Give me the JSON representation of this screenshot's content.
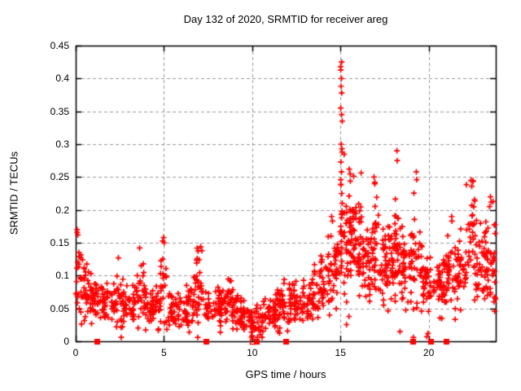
{
  "chart_data": {
    "type": "scatter",
    "title": "Day 132 of 2020, SRMTID for receiver areg",
    "xlabel": "GPS time / hours",
    "ylabel": "SRMTID / TECUs",
    "xlim": [
      0,
      23.8
    ],
    "ylim": [
      0,
      0.45
    ],
    "x_ticks": [
      0,
      5,
      10,
      15,
      20
    ],
    "x_tick_labels": [
      "0",
      "5",
      "10",
      "15",
      "20"
    ],
    "y_ticks": [
      0,
      0.05,
      0.1,
      0.15,
      0.2,
      0.25,
      0.3,
      0.35,
      0.4,
      0.45
    ],
    "y_tick_labels": [
      "0",
      "0.05",
      "0.1",
      "0.15",
      "0.2",
      "0.25",
      "0.3",
      "0.35",
      "0.4",
      "0.45"
    ],
    "grid": {
      "style": "dashed",
      "color": "#9a9a9a",
      "x_lines": [
        5,
        10,
        15,
        20
      ],
      "y_lines": [
        0.05,
        0.1,
        0.15,
        0.2,
        0.25,
        0.3,
        0.35,
        0.4
      ]
    },
    "legend": "none",
    "marker": {
      "glyph": "plus",
      "color": "#ff0000",
      "size": 7
    },
    "frame_color": "#000000",
    "background": "#ffffff",
    "seed": 1337,
    "bands_format": [
      "t_start",
      "t_end",
      "n_points",
      "center_start",
      "center_end",
      "spread"
    ],
    "bands": [
      [
        0.0,
        0.3,
        22,
        0.105,
        0.1,
        0.033
      ],
      [
        0.3,
        0.8,
        30,
        0.09,
        0.075,
        0.024
      ],
      [
        0.8,
        1.5,
        40,
        0.068,
        0.06,
        0.017
      ],
      [
        1.5,
        2.2,
        40,
        0.055,
        0.052,
        0.014
      ],
      [
        2.2,
        2.7,
        28,
        0.068,
        0.062,
        0.024
      ],
      [
        2.7,
        3.4,
        40,
        0.052,
        0.055,
        0.014
      ],
      [
        3.4,
        3.9,
        28,
        0.072,
        0.068,
        0.027
      ],
      [
        3.9,
        4.8,
        50,
        0.055,
        0.05,
        0.014
      ],
      [
        4.8,
        5.15,
        22,
        0.075,
        0.08,
        0.032
      ],
      [
        5.15,
        6.3,
        62,
        0.048,
        0.05,
        0.014
      ],
      [
        6.3,
        6.8,
        30,
        0.058,
        0.062,
        0.018
      ],
      [
        6.8,
        7.3,
        30,
        0.075,
        0.07,
        0.026
      ],
      [
        7.3,
        8.5,
        62,
        0.052,
        0.055,
        0.014
      ],
      [
        8.5,
        9.3,
        45,
        0.06,
        0.05,
        0.016
      ],
      [
        9.3,
        9.9,
        35,
        0.045,
        0.038,
        0.012
      ],
      [
        9.9,
        10.6,
        40,
        0.03,
        0.032,
        0.013
      ],
      [
        10.6,
        11.4,
        45,
        0.038,
        0.042,
        0.012
      ],
      [
        11.4,
        12.1,
        40,
        0.052,
        0.055,
        0.016
      ],
      [
        12.1,
        12.8,
        40,
        0.06,
        0.058,
        0.016
      ],
      [
        12.8,
        13.5,
        40,
        0.062,
        0.068,
        0.016
      ],
      [
        13.5,
        14.2,
        40,
        0.075,
        0.085,
        0.02
      ],
      [
        14.2,
        14.75,
        34,
        0.095,
        0.11,
        0.027
      ],
      [
        14.75,
        15.0,
        16,
        0.12,
        0.14,
        0.035
      ],
      [
        15.0,
        15.35,
        25,
        0.17,
        0.16,
        0.05
      ],
      [
        15.35,
        15.75,
        40,
        0.165,
        0.155,
        0.042
      ],
      [
        15.75,
        16.25,
        40,
        0.15,
        0.14,
        0.038
      ],
      [
        16.25,
        16.7,
        35,
        0.12,
        0.115,
        0.032
      ],
      [
        16.7,
        17.15,
        35,
        0.14,
        0.145,
        0.04
      ],
      [
        17.15,
        17.7,
        35,
        0.115,
        0.12,
        0.028
      ],
      [
        17.7,
        18.05,
        25,
        0.125,
        0.13,
        0.032
      ],
      [
        18.05,
        18.4,
        34,
        0.14,
        0.13,
        0.045
      ],
      [
        18.4,
        19.0,
        40,
        0.11,
        0.105,
        0.028
      ],
      [
        19.0,
        19.5,
        30,
        0.12,
        0.13,
        0.038
      ],
      [
        19.5,
        20.2,
        42,
        0.095,
        0.09,
        0.023
      ],
      [
        20.2,
        20.9,
        42,
        0.088,
        0.09,
        0.02
      ],
      [
        20.9,
        21.5,
        36,
        0.095,
        0.1,
        0.027
      ],
      [
        21.5,
        22.1,
        40,
        0.105,
        0.11,
        0.027
      ],
      [
        22.1,
        22.65,
        36,
        0.14,
        0.15,
        0.04
      ],
      [
        22.65,
        23.2,
        36,
        0.115,
        0.12,
        0.028
      ],
      [
        23.2,
        23.79,
        42,
        0.125,
        0.13,
        0.038
      ]
    ],
    "spike_column": {
      "t": 15.06,
      "t_jitter": 0.05,
      "ys": [
        0.425,
        0.418,
        0.413,
        0.4,
        0.388,
        0.378,
        0.355,
        0.345,
        0.335,
        0.3,
        0.293,
        0.288,
        0.273,
        0.258,
        0.246,
        0.238,
        0.225,
        0.21,
        0.198,
        0.188,
        0.175,
        0.163,
        0.152,
        0.142,
        0.133,
        0.122,
        0.112,
        0.105
      ]
    },
    "feature_points": [
      [
        0.08,
        0.17
      ],
      [
        0.12,
        0.162
      ],
      [
        2.42,
        0.127
      ],
      [
        3.62,
        0.142
      ],
      [
        4.98,
        0.158
      ],
      [
        5.02,
        0.15
      ],
      [
        7.08,
        0.144
      ],
      [
        7.15,
        0.138
      ],
      [
        8.8,
        0.092
      ],
      [
        11.82,
        0.094
      ],
      [
        13.9,
        0.13
      ],
      [
        14.5,
        0.19
      ],
      [
        14.55,
        0.183
      ],
      [
        15.5,
        0.262
      ],
      [
        15.55,
        0.255
      ],
      [
        16.9,
        0.25
      ],
      [
        16.95,
        0.242
      ],
      [
        18.2,
        0.29
      ],
      [
        18.22,
        0.275
      ],
      [
        19.3,
        0.258
      ],
      [
        19.32,
        0.246
      ],
      [
        21.3,
        0.19
      ],
      [
        21.32,
        0.183
      ],
      [
        22.4,
        0.245
      ],
      [
        22.44,
        0.236
      ],
      [
        23.5,
        0.22
      ],
      [
        23.54,
        0.212
      ],
      [
        23.45,
        0.205
      ],
      [
        10.3,
        0.006
      ],
      [
        10.45,
        0.01
      ],
      [
        19.9,
        0.007
      ],
      [
        19.96,
        0.012
      ],
      [
        23.7,
        0.06
      ],
      [
        23.75,
        0.09
      ]
    ],
    "zero_axis_markers": {
      "filled_squares_t": [
        1.2,
        7.4,
        10.25,
        11.9,
        19.1,
        20.1,
        21.0
      ],
      "open_squares_t": [
        10.0
      ]
    }
  }
}
